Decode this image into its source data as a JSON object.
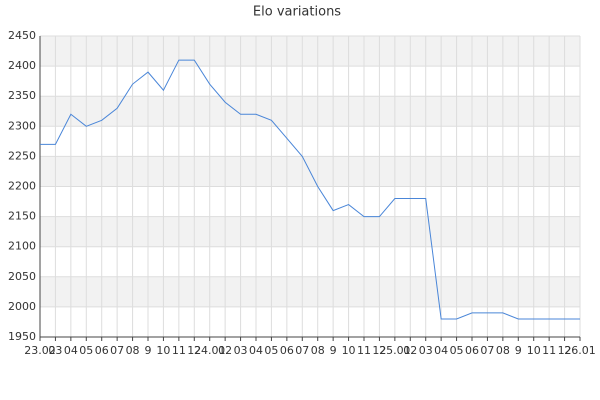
{
  "chart_data": {
    "type": "line",
    "title": "Elo variations",
    "categories": [
      "23.02",
      "03",
      "04",
      "05",
      "06",
      "07",
      "08",
      "9",
      "10",
      "11",
      "12",
      "24.01",
      "02",
      "03",
      "04",
      "05",
      "06",
      "07",
      "08",
      "9",
      "10",
      "11",
      "12",
      "25.01",
      "02",
      "03",
      "04",
      "05",
      "06",
      "07",
      "08",
      "9",
      "10",
      "11",
      "12",
      "26.01"
    ],
    "values": [
      2270,
      2270,
      2320,
      2300,
      2310,
      2330,
      2370,
      2390,
      2360,
      2410,
      2410,
      2370,
      2340,
      2320,
      2320,
      2310,
      2280,
      2250,
      2200,
      2160,
      2170,
      2150,
      2150,
      2180,
      2180,
      2180,
      1980,
      1980,
      1990,
      1990,
      1990,
      1980,
      1980,
      1980,
      1980,
      1980
    ],
    "color": "#4a86d8",
    "ylim": [
      1950,
      2450
    ],
    "yticks": [
      1950,
      2000,
      2050,
      2100,
      2150,
      2200,
      2250,
      2300,
      2350,
      2400,
      2450
    ],
    "grid": true
  }
}
